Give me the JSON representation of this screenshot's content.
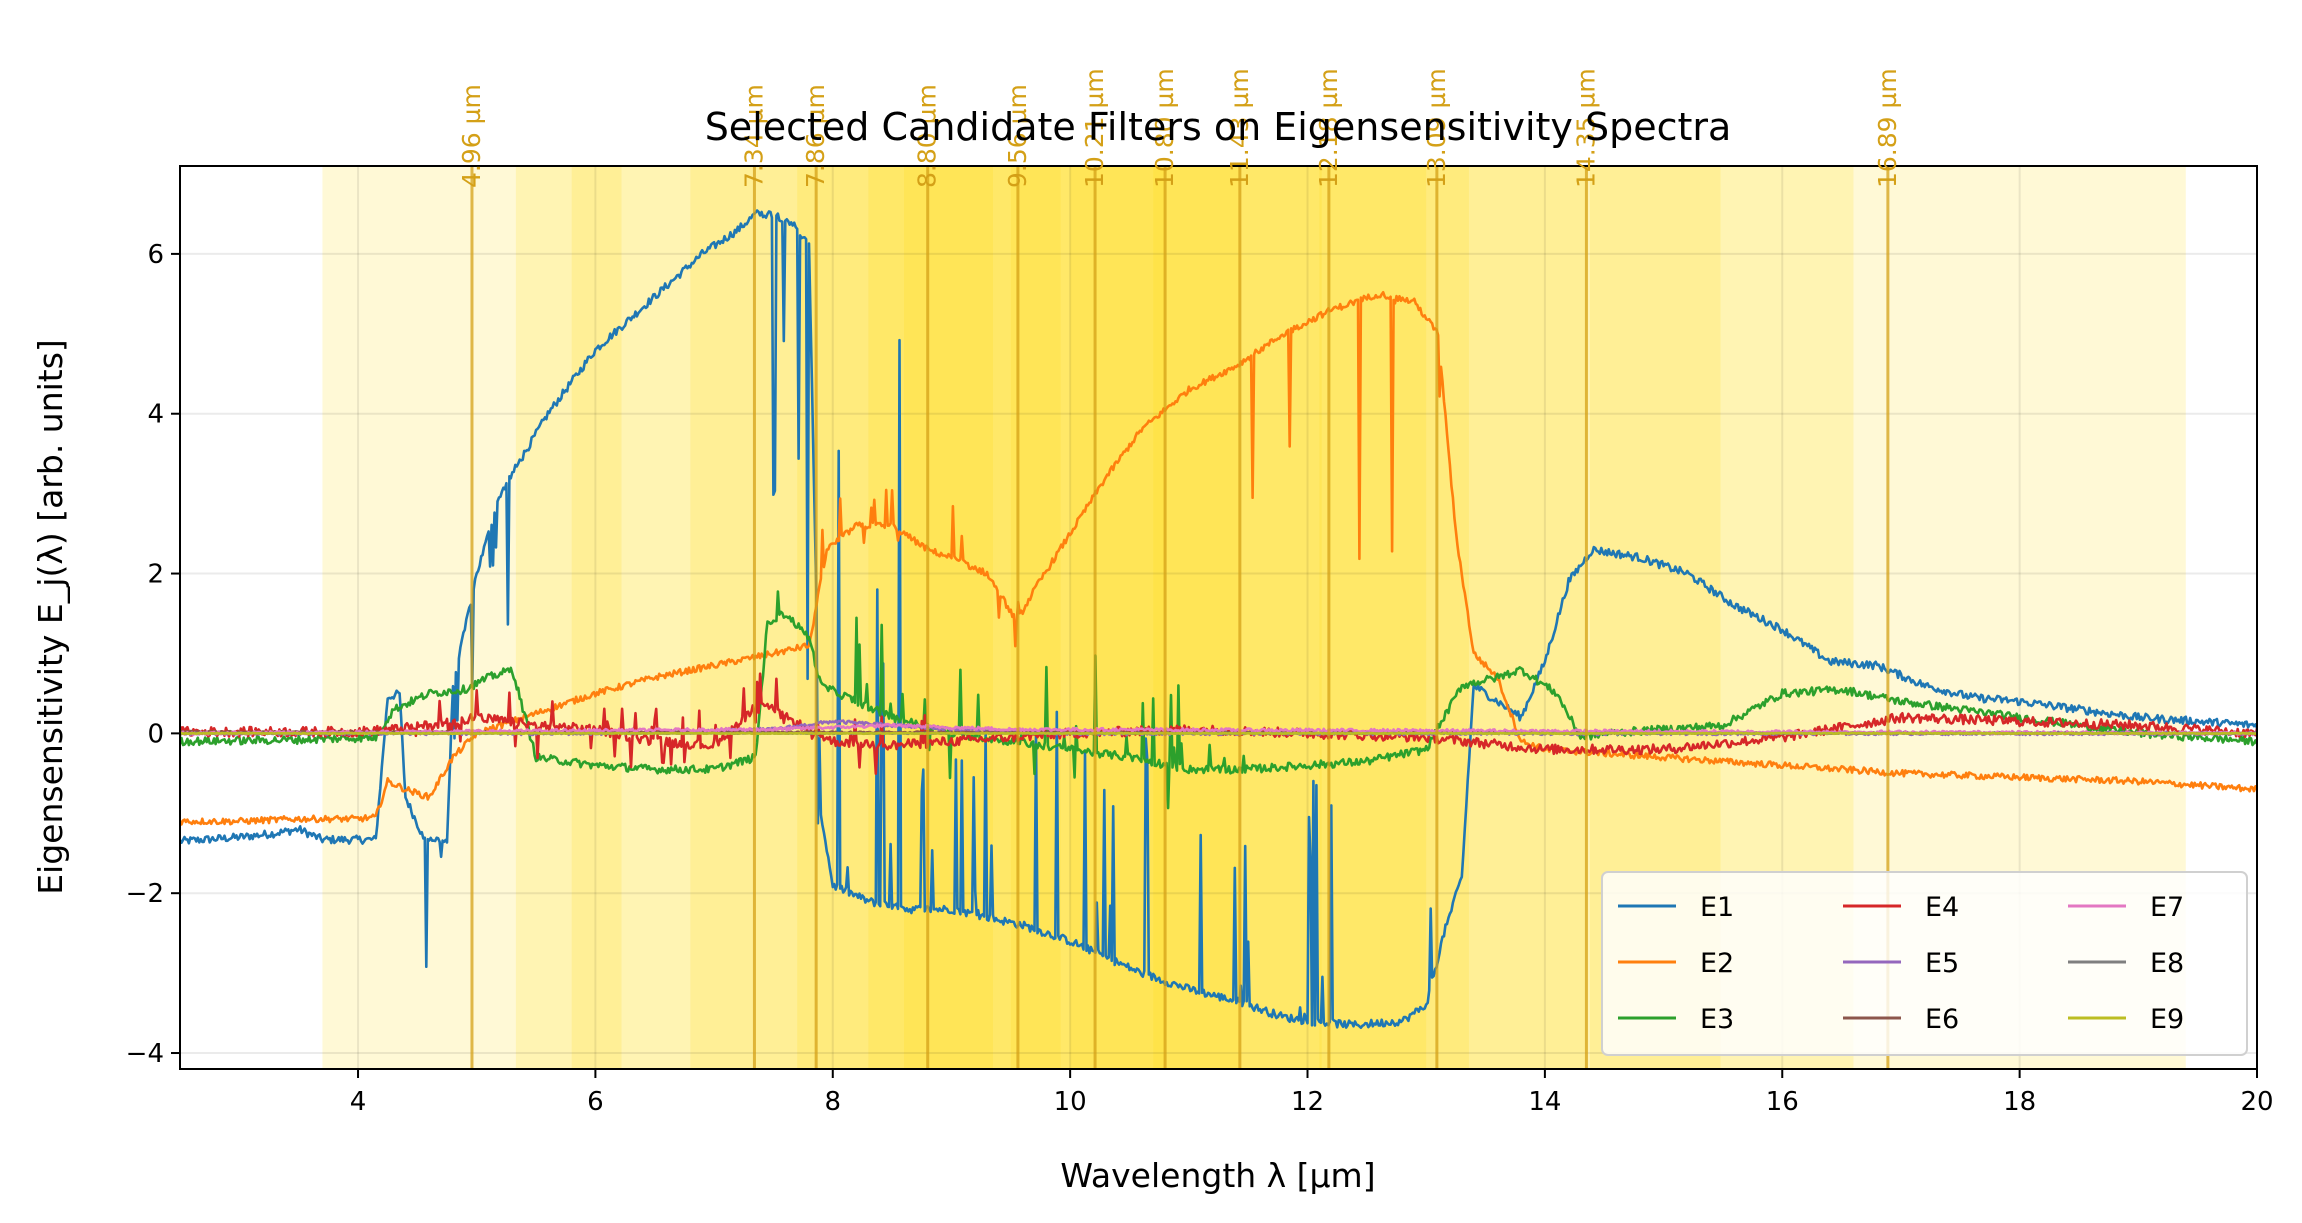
{
  "chart_data": {
    "type": "line",
    "title": "Selected Candidate Filters on Eigensensitivity Spectra",
    "xlabel": "Wavelength λ [µm]",
    "ylabel": "Eigensensitivity E_j(λ) [arb. units]",
    "xlim": [
      2.5,
      20
    ],
    "ylim": [
      -4.2,
      7.1
    ],
    "x_ticks": [
      4,
      6,
      8,
      10,
      12,
      14,
      16,
      18,
      20
    ],
    "y_ticks": [
      -4,
      -2,
      0,
      2,
      4,
      6
    ],
    "y_tick_labels": [
      "−4",
      "−2",
      "0",
      "2",
      "4",
      "6"
    ],
    "grid": true,
    "legend": {
      "placement": "lower-right",
      "columns": 3
    },
    "filter_bands": [
      {
        "center": 4.96,
        "lo": 3.7,
        "hi": 6.22
      },
      {
        "center": 7.34,
        "lo": 5.33,
        "hi": 9.35
      },
      {
        "center": 7.86,
        "lo": 5.8,
        "hi": 9.92
      },
      {
        "center": 8.8,
        "lo": 6.8,
        "hi": 10.8
      },
      {
        "center": 9.56,
        "lo": 7.7,
        "hi": 11.42
      },
      {
        "center": 10.21,
        "lo": 8.3,
        "hi": 12.12
      },
      {
        "center": 10.8,
        "lo": 8.6,
        "hi": 13.0
      },
      {
        "center": 11.43,
        "lo": 9.5,
        "hi": 13.36
      },
      {
        "center": 12.18,
        "lo": 10.0,
        "hi": 14.36
      },
      {
        "center": 13.09,
        "lo": 10.7,
        "hi": 15.48
      },
      {
        "center": 14.35,
        "lo": 12.1,
        "hi": 16.6
      },
      {
        "center": 16.89,
        "lo": 14.38,
        "hi": 19.4
      }
    ],
    "filter_labels": [
      "4.96 µm",
      "7.34 µm",
      "7.86 µm",
      "8.80 µm",
      "9.56 µm",
      "10.21 µm",
      "10.80 µm",
      "11.43 µm",
      "12.18 µm",
      "13.09 µm",
      "14.35 µm",
      "16.89 µm"
    ],
    "series": [
      {
        "name": "E1",
        "color": "#1f77b4",
        "noise": 0.05,
        "points": [
          [
            2.5,
            -1.35
          ],
          [
            3.0,
            -1.3
          ],
          [
            3.3,
            -1.25
          ],
          [
            3.5,
            -1.2
          ],
          [
            3.7,
            -1.33
          ],
          [
            4.0,
            -1.33
          ],
          [
            4.15,
            -1.33
          ],
          [
            4.25,
            0.45
          ],
          [
            4.35,
            0.5
          ],
          [
            4.4,
            -0.8
          ],
          [
            4.55,
            -1.3
          ],
          [
            4.75,
            -1.35
          ],
          [
            4.8,
            0.6
          ],
          [
            4.9,
            1.3
          ],
          [
            5.0,
            2.0
          ],
          [
            5.2,
            3.0
          ],
          [
            5.4,
            3.5
          ],
          [
            5.6,
            4.0
          ],
          [
            5.8,
            4.4
          ],
          [
            6.0,
            4.8
          ],
          [
            6.3,
            5.2
          ],
          [
            6.6,
            5.6
          ],
          [
            6.9,
            6.0
          ],
          [
            7.2,
            6.3
          ],
          [
            7.35,
            6.5
          ],
          [
            7.5,
            6.5
          ],
          [
            7.65,
            6.4
          ],
          [
            7.8,
            6.1
          ],
          [
            7.9,
            -1.0
          ],
          [
            8.0,
            -1.9
          ],
          [
            8.3,
            -2.1
          ],
          [
            8.6,
            -2.2
          ],
          [
            9.0,
            -2.2
          ],
          [
            9.3,
            -2.3
          ],
          [
            9.6,
            -2.4
          ],
          [
            10.0,
            -2.6
          ],
          [
            10.3,
            -2.8
          ],
          [
            10.6,
            -3.0
          ],
          [
            11.0,
            -3.2
          ],
          [
            11.4,
            -3.35
          ],
          [
            11.8,
            -3.55
          ],
          [
            12.0,
            -3.6
          ],
          [
            12.4,
            -3.65
          ],
          [
            12.8,
            -3.6
          ],
          [
            13.0,
            -3.4
          ],
          [
            13.15,
            -2.5
          ],
          [
            13.3,
            -1.8
          ],
          [
            13.4,
            0.6
          ],
          [
            13.6,
            0.4
          ],
          [
            13.8,
            0.2
          ],
          [
            14.0,
            0.9
          ],
          [
            14.2,
            1.9
          ],
          [
            14.4,
            2.3
          ],
          [
            14.8,
            2.2
          ],
          [
            15.2,
            2.0
          ],
          [
            15.6,
            1.6
          ],
          [
            16.0,
            1.3
          ],
          [
            16.4,
            0.9
          ],
          [
            16.8,
            0.85
          ],
          [
            17.2,
            0.6
          ],
          [
            17.6,
            0.45
          ],
          [
            18.0,
            0.4
          ],
          [
            18.5,
            0.3
          ],
          [
            19.0,
            0.2
          ],
          [
            19.5,
            0.15
          ],
          [
            20.0,
            0.1
          ]
        ]
      },
      {
        "name": "E2",
        "color": "#ff7f0e",
        "noise": 0.04,
        "points": [
          [
            2.5,
            -1.1
          ],
          [
            3.0,
            -1.1
          ],
          [
            3.5,
            -1.07
          ],
          [
            4.0,
            -1.07
          ],
          [
            4.15,
            -1.05
          ],
          [
            4.25,
            -0.6
          ],
          [
            4.4,
            -0.7
          ],
          [
            4.6,
            -0.8
          ],
          [
            4.8,
            -0.3
          ],
          [
            5.0,
            0.0
          ],
          [
            5.5,
            0.25
          ],
          [
            6.0,
            0.5
          ],
          [
            6.5,
            0.7
          ],
          [
            7.0,
            0.85
          ],
          [
            7.5,
            1.0
          ],
          [
            7.8,
            1.1
          ],
          [
            7.95,
            2.3
          ],
          [
            8.2,
            2.6
          ],
          [
            8.5,
            2.6
          ],
          [
            8.8,
            2.3
          ],
          [
            9.0,
            2.2
          ],
          [
            9.3,
            2.0
          ],
          [
            9.55,
            1.4
          ],
          [
            9.7,
            1.8
          ],
          [
            10.0,
            2.5
          ],
          [
            10.3,
            3.2
          ],
          [
            10.6,
            3.8
          ],
          [
            11.0,
            4.3
          ],
          [
            11.4,
            4.6
          ],
          [
            11.8,
            5.0
          ],
          [
            12.2,
            5.3
          ],
          [
            12.6,
            5.5
          ],
          [
            12.9,
            5.4
          ],
          [
            13.1,
            5.0
          ],
          [
            13.25,
            2.5
          ],
          [
            13.4,
            1.0
          ],
          [
            13.6,
            0.7
          ],
          [
            13.8,
            -0.1
          ],
          [
            14.0,
            -0.2
          ],
          [
            15.0,
            -0.3
          ],
          [
            16.0,
            -0.4
          ],
          [
            17.0,
            -0.5
          ],
          [
            18.0,
            -0.55
          ],
          [
            19.0,
            -0.6
          ],
          [
            20.0,
            -0.7
          ]
        ]
      },
      {
        "name": "E3",
        "color": "#2ca02c",
        "noise": 0.05,
        "points": [
          [
            2.5,
            -0.1
          ],
          [
            3.5,
            -0.08
          ],
          [
            4.15,
            -0.05
          ],
          [
            4.3,
            0.3
          ],
          [
            4.6,
            0.5
          ],
          [
            4.9,
            0.55
          ],
          [
            5.1,
            0.7
          ],
          [
            5.3,
            0.8
          ],
          [
            5.5,
            -0.3
          ],
          [
            6.0,
            -0.4
          ],
          [
            6.5,
            -0.45
          ],
          [
            7.0,
            -0.45
          ],
          [
            7.35,
            -0.3
          ],
          [
            7.45,
            1.4
          ],
          [
            7.6,
            1.5
          ],
          [
            7.8,
            1.2
          ],
          [
            7.9,
            0.6
          ],
          [
            8.2,
            0.4
          ],
          [
            8.5,
            0.2
          ],
          [
            9.0,
            0.0
          ],
          [
            9.5,
            -0.1
          ],
          [
            10.0,
            -0.2
          ],
          [
            10.5,
            -0.3
          ],
          [
            11.0,
            -0.45
          ],
          [
            11.5,
            -0.45
          ],
          [
            12.0,
            -0.4
          ],
          [
            12.5,
            -0.35
          ],
          [
            13.0,
            -0.2
          ],
          [
            13.3,
            0.6
          ],
          [
            13.6,
            0.7
          ],
          [
            13.8,
            0.8
          ],
          [
            14.1,
            0.5
          ],
          [
            14.3,
            -0.05
          ],
          [
            14.5,
            0.0
          ],
          [
            15.0,
            0.05
          ],
          [
            15.5,
            0.1
          ],
          [
            16.0,
            0.5
          ],
          [
            16.5,
            0.55
          ],
          [
            17.0,
            0.4
          ],
          [
            17.5,
            0.3
          ],
          [
            18.0,
            0.2
          ],
          [
            19.0,
            0.0
          ],
          [
            20.0,
            -0.1
          ]
        ]
      },
      {
        "name": "E4",
        "color": "#d62728",
        "noise": 0.06,
        "points": [
          [
            2.5,
            0.02
          ],
          [
            4.0,
            0.02
          ],
          [
            4.3,
            0.05
          ],
          [
            4.6,
            0.1
          ],
          [
            5.0,
            0.2
          ],
          [
            5.5,
            0.1
          ],
          [
            6.0,
            0.05
          ],
          [
            6.5,
            -0.1
          ],
          [
            7.0,
            -0.15
          ],
          [
            7.4,
            0.4
          ],
          [
            7.6,
            0.2
          ],
          [
            8.0,
            -0.1
          ],
          [
            8.5,
            -0.15
          ],
          [
            9.0,
            -0.1
          ],
          [
            9.5,
            -0.05
          ],
          [
            10.0,
            0.0
          ],
          [
            11.0,
            0.05
          ],
          [
            12.0,
            0.0
          ],
          [
            13.0,
            -0.05
          ],
          [
            14.0,
            -0.2
          ],
          [
            15.0,
            -0.2
          ],
          [
            16.0,
            -0.05
          ],
          [
            17.0,
            0.2
          ],
          [
            18.0,
            0.15
          ],
          [
            19.0,
            0.1
          ],
          [
            20.0,
            0.0
          ]
        ]
      },
      {
        "name": "E5",
        "color": "#9467bd",
        "noise": 0.02,
        "points": [
          [
            2.5,
            0.0
          ],
          [
            6.0,
            0.0
          ],
          [
            7.5,
            0.05
          ],
          [
            8.0,
            0.15
          ],
          [
            8.5,
            0.1
          ],
          [
            9.0,
            0.05
          ],
          [
            10.0,
            0.0
          ],
          [
            20.0,
            0.0
          ]
        ]
      },
      {
        "name": "E6",
        "color": "#8c564b",
        "noise": 0.01,
        "points": [
          [
            2.5,
            0.02
          ],
          [
            20.0,
            0.0
          ]
        ]
      },
      {
        "name": "E7",
        "color": "#e377c2",
        "noise": 0.02,
        "points": [
          [
            2.5,
            0.0
          ],
          [
            7.5,
            0.05
          ],
          [
            8.5,
            0.1
          ],
          [
            9.5,
            0.05
          ],
          [
            20.0,
            0.0
          ]
        ]
      },
      {
        "name": "E8",
        "color": "#7f7f7f",
        "noise": 0.005,
        "points": [
          [
            2.5,
            0.0
          ],
          [
            20.0,
            0.0
          ]
        ]
      },
      {
        "name": "E9",
        "color": "#bcbd22",
        "noise": 0.005,
        "points": [
          [
            2.5,
            0.0
          ],
          [
            20.0,
            0.0
          ]
        ]
      }
    ]
  }
}
